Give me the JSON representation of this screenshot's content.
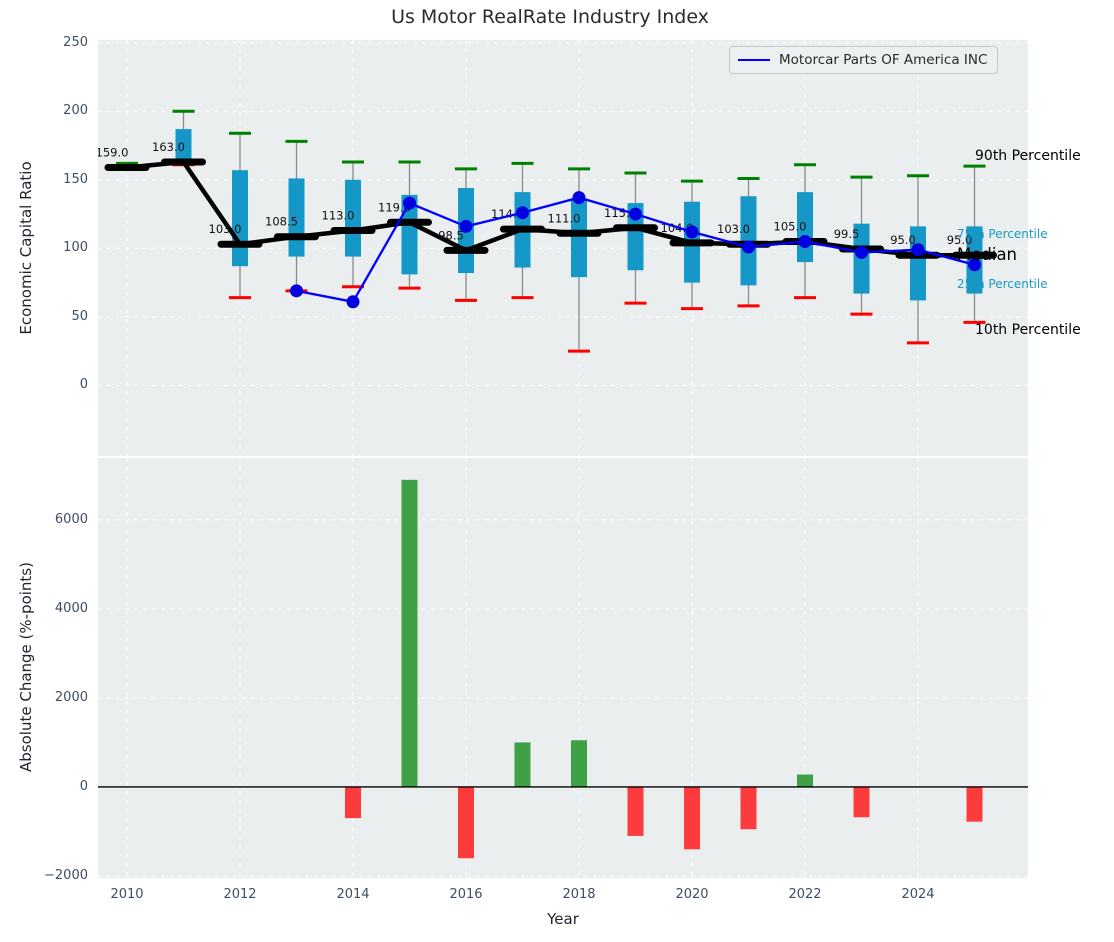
{
  "title": "Us Motor RealRate Industry Index",
  "legend": {
    "label": "Motorcar Parts OF America INC"
  },
  "annotations": {
    "p90": "90th Percentile",
    "p75": "75th Percentile",
    "median": "Median",
    "p25": "25th Percentile",
    "p10": "10th Percentile"
  },
  "colors": {
    "figure_bg": "#ffffff",
    "axes_bg": "#eaeeef",
    "grid": "#ffffff",
    "box_fill": "#1598c8",
    "whisker": "#8a8a8a",
    "cap_top": "#008000",
    "cap_bottom": "#ff0000",
    "median_line": "#000000",
    "company_line": "#0000ff",
    "company_marker": "#0000e0",
    "bar_positive": "#3ea044",
    "bar_negative": "#fc3c3c",
    "zero_line": "#000000",
    "tick_label": "#3e4e63",
    "annotation_cyan": "#1b9ac4"
  },
  "chart_data": [
    {
      "type": "boxplot+line",
      "title": "Us Motor RealRate Industry Index",
      "ylabel": "Economic Capital Ratio",
      "x": [
        2010,
        2011,
        2012,
        2013,
        2014,
        2015,
        2016,
        2017,
        2018,
        2019,
        2020,
        2021,
        2022,
        2023,
        2024,
        2025
      ],
      "xtick_labels": [
        "2010",
        "2012",
        "2014",
        "2016",
        "2018",
        "2020",
        "2022",
        "2024"
      ],
      "ytick_labels": [
        "250",
        "200",
        "150",
        "100",
        "50",
        "0"
      ],
      "yticks": [
        250,
        200,
        150,
        100,
        50,
        0
      ],
      "ylim": [
        -51.5,
        252
      ],
      "grid": true,
      "legend_position": "upper right",
      "series": {
        "p90": [
          162,
          200,
          184,
          178,
          163,
          163,
          158,
          162,
          158,
          155,
          149,
          151,
          161,
          152,
          153,
          160
        ],
        "p75": [
          160.5,
          187,
          157,
          151,
          150,
          139,
          144,
          141,
          135,
          133,
          134,
          138,
          141,
          118,
          116,
          116
        ],
        "median": [
          159,
          163,
          103,
          108.5,
          113,
          119,
          98.5,
          114,
          111,
          115,
          104,
          103,
          105,
          99.5,
          95,
          95
        ],
        "p25": [
          158,
          165,
          87,
          94,
          94,
          81,
          82,
          86,
          79,
          84,
          75,
          73,
          90,
          67,
          62,
          67
        ],
        "p10": [
          157.5,
          161,
          64,
          69,
          72,
          71,
          62,
          64,
          25,
          60,
          56,
          58,
          64,
          52,
          31,
          46
        ]
      },
      "median_labels": [
        "159.0",
        "163.0",
        "103.0",
        "108.5",
        "113.0",
        "119.0",
        "98.5",
        "114.0",
        "111.0",
        "115.0",
        "104.0",
        "103.0",
        "105.0",
        "99.5",
        "95.0",
        "95.0"
      ],
      "company": {
        "name": "Motorcar Parts OF America INC",
        "values": [
          null,
          null,
          null,
          69,
          61,
          133,
          116,
          126,
          137,
          125,
          112,
          101,
          105,
          97,
          99,
          88
        ]
      }
    },
    {
      "type": "bar",
      "ylabel": "Absolute Change (%-points)",
      "xlabel": "Year",
      "x": [
        2010,
        2011,
        2012,
        2013,
        2014,
        2015,
        2016,
        2017,
        2018,
        2019,
        2020,
        2021,
        2022,
        2023,
        2024,
        2025
      ],
      "values": [
        0,
        0,
        0,
        0,
        -700,
        6900,
        -1600,
        1000,
        1050,
        -1100,
        -1400,
        -950,
        280,
        -680,
        0,
        -780
      ],
      "xtick_labels": [
        "2010",
        "2012",
        "2014",
        "2016",
        "2018",
        "2020",
        "2022",
        "2024"
      ],
      "ytick_labels": [
        "6000",
        "4000",
        "2000",
        "0",
        "−2000"
      ],
      "yticks": [
        6000,
        4000,
        2000,
        0,
        -2000
      ],
      "ylim": [
        -2045,
        7390
      ],
      "grid": true
    }
  ]
}
